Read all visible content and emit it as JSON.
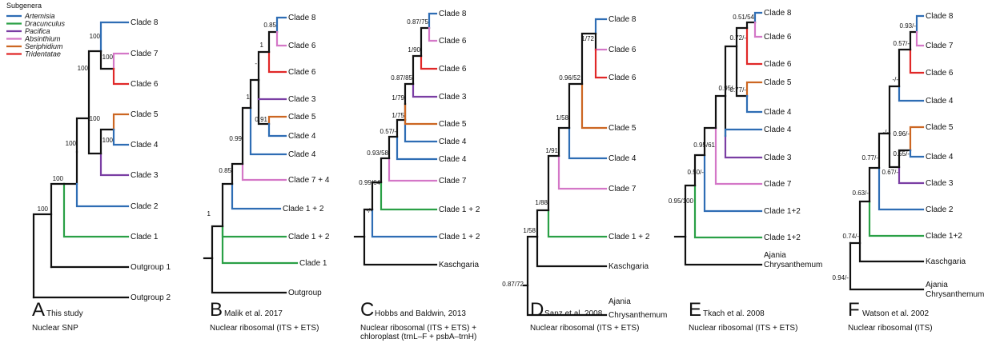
{
  "legend": {
    "title": "Subgenera",
    "items": [
      {
        "name": "Artemisia",
        "color": "#2e6db4"
      },
      {
        "name": "Dracunculus",
        "color": "#2aa046"
      },
      {
        "name": "Pacifica",
        "color": "#7a3ea3"
      },
      {
        "name": "Absinthium",
        "color": "#d477c7"
      },
      {
        "name": "Seriphidium",
        "color": "#cc6622"
      },
      {
        "name": "Tridentatae",
        "color": "#e02828"
      }
    ]
  },
  "colors": {
    "artemisia": "#2e6db4",
    "dracunculus": "#2aa046",
    "pacifica": "#7a3ea3",
    "absinthium": "#d477c7",
    "seriphidium": "#cc6622",
    "tridentatae": "#e02828",
    "black": "#111111"
  },
  "panels": [
    {
      "letter": "A",
      "author": "This study",
      "source": [
        "Nuclear SNP"
      ],
      "tips": [
        "Clade 8",
        "Clade 7",
        "Clade 6",
        "Clade 5",
        "Clade 4",
        "Clade 3",
        "Clade 2",
        "Clade 1",
        "Outgroup 1",
        "Outgroup 2"
      ],
      "support": [
        "100",
        "100",
        "100",
        "100",
        "100",
        "100",
        "100",
        "100"
      ]
    },
    {
      "letter": "B",
      "author": "Malik et al. 2017",
      "source": [
        "Nuclear ribosomal (ITS + ETS)"
      ],
      "tips": [
        "Clade 8",
        "Clade 6",
        "Clade 6",
        "Clade 3",
        "Clade 5",
        "Clade 4",
        "Clade 4",
        "Clade 7 + 4",
        "Clade 1 + 2",
        "Clade 1 + 2",
        "Clade 1",
        "Outgroup"
      ],
      "support": [
        "0.85",
        "1",
        "-",
        "1",
        "0.91",
        "0.99",
        "0.85",
        "1"
      ]
    },
    {
      "letter": "C",
      "author": "Hobbs and Baldwin, 2013",
      "source": [
        "Nuclear ribosomal (ITS + ETS) +",
        "chloroplast (trnL–F + psbA–trnH)"
      ],
      "tips": [
        "Clade 8",
        "Clade 6",
        "Clade 6",
        "Clade 3",
        "Clade 5",
        "Clade 4",
        "Clade 4",
        "Clade 7",
        "Clade 1 + 2",
        "Clade 1 + 2",
        "Kaschgaria"
      ],
      "support": [
        "0.87/75",
        "1/90",
        "0.87/85",
        "1/79",
        "1/75",
        "0.57/-",
        "0.93/58",
        "0.99/64",
        "-/-"
      ]
    },
    {
      "letter": "D",
      "author": "Sanz et al. 2008",
      "source": [
        "Nuclear ribosomal (ITS + ETS)"
      ],
      "tips": [
        "Clade 8",
        "Clade 6",
        "Clade 6",
        "Clade 5",
        "Clade 4",
        "Clade 7",
        "Clade 1 + 2",
        "Kaschgaria",
        "Ajania",
        "Chrysanthemum"
      ],
      "support": [
        "1/72",
        "0.96/52",
        "1/58",
        "1/91",
        "1/88",
        "1/58",
        "0.87/72"
      ]
    },
    {
      "letter": "E",
      "author": "Tkach et al. 2008",
      "source": [
        "Nuclear ribosomal (ITS + ETS)"
      ],
      "tips": [
        "Clade 8",
        "Clade 6",
        "Clade 6",
        "Clade 5",
        "Clade 4",
        "Clade 4",
        "Clade 3",
        "Clade 7",
        "Clade 1+2",
        "Clade 1+2",
        "Ajania",
        "Chrysanthemum"
      ],
      "support": [
        "0.51/54",
        "0.72/-",
        "0.95/-",
        "0.77/-",
        "0.95/61",
        "0.50/-",
        "0.95/100"
      ]
    },
    {
      "letter": "F",
      "author": "Watson et al. 2002",
      "source": [
        "Nuclear ribosomal (ITS)"
      ],
      "tips": [
        "Clade 8",
        "Clade 7",
        "Clade 6",
        "Clade 4",
        "Clade 5",
        "Clade 4",
        "Clade 3",
        "Clade 2",
        "Clade 1+2",
        "Kaschgaria",
        "Ajania",
        "Chrysanthemum"
      ],
      "support": [
        "0.93/-",
        "0.57/-",
        "-/-",
        "-/-",
        "0.96/-",
        "0.55/-",
        "0.67/-",
        "0.77/-",
        "0.63/-",
        "0.74/-",
        "0.94/-"
      ]
    }
  ]
}
